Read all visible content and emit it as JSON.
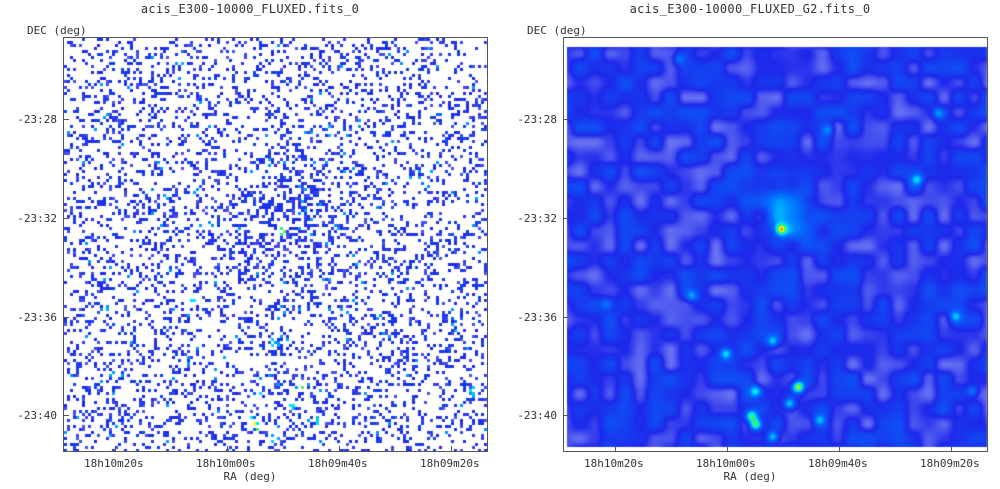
{
  "panels": [
    {
      "title": "acis_E300-10000_FLUXED.fits_0",
      "y_axis_label": "DEC (deg)",
      "x_axis_label": "RA (deg)",
      "y_ticks": [
        "-23:28",
        "-23:32",
        "-23:36",
        "-23:40"
      ],
      "x_ticks": [
        "18h10m20s",
        "18h10m00s",
        "18h09m40s",
        "18h09m20s"
      ],
      "image_style": "sparse-pixel-counts"
    },
    {
      "title": "acis_E300-10000_FLUXED_G2.fits_0",
      "y_axis_label": "DEC (deg)",
      "x_axis_label": "RA (deg)",
      "y_ticks": [
        "-23:28",
        "-23:32",
        "-23:36",
        "-23:40"
      ],
      "x_ticks": [
        "18h10m20s",
        "18h10m00s",
        "18h09m40s",
        "18h09m20s"
      ],
      "image_style": "gaussian-smoothed"
    }
  ],
  "colors": {
    "low": "#1010e0",
    "mid": "#00e0ff",
    "high": "#ffff00",
    "peak": "#cc0000",
    "background": "#ffffff"
  }
}
